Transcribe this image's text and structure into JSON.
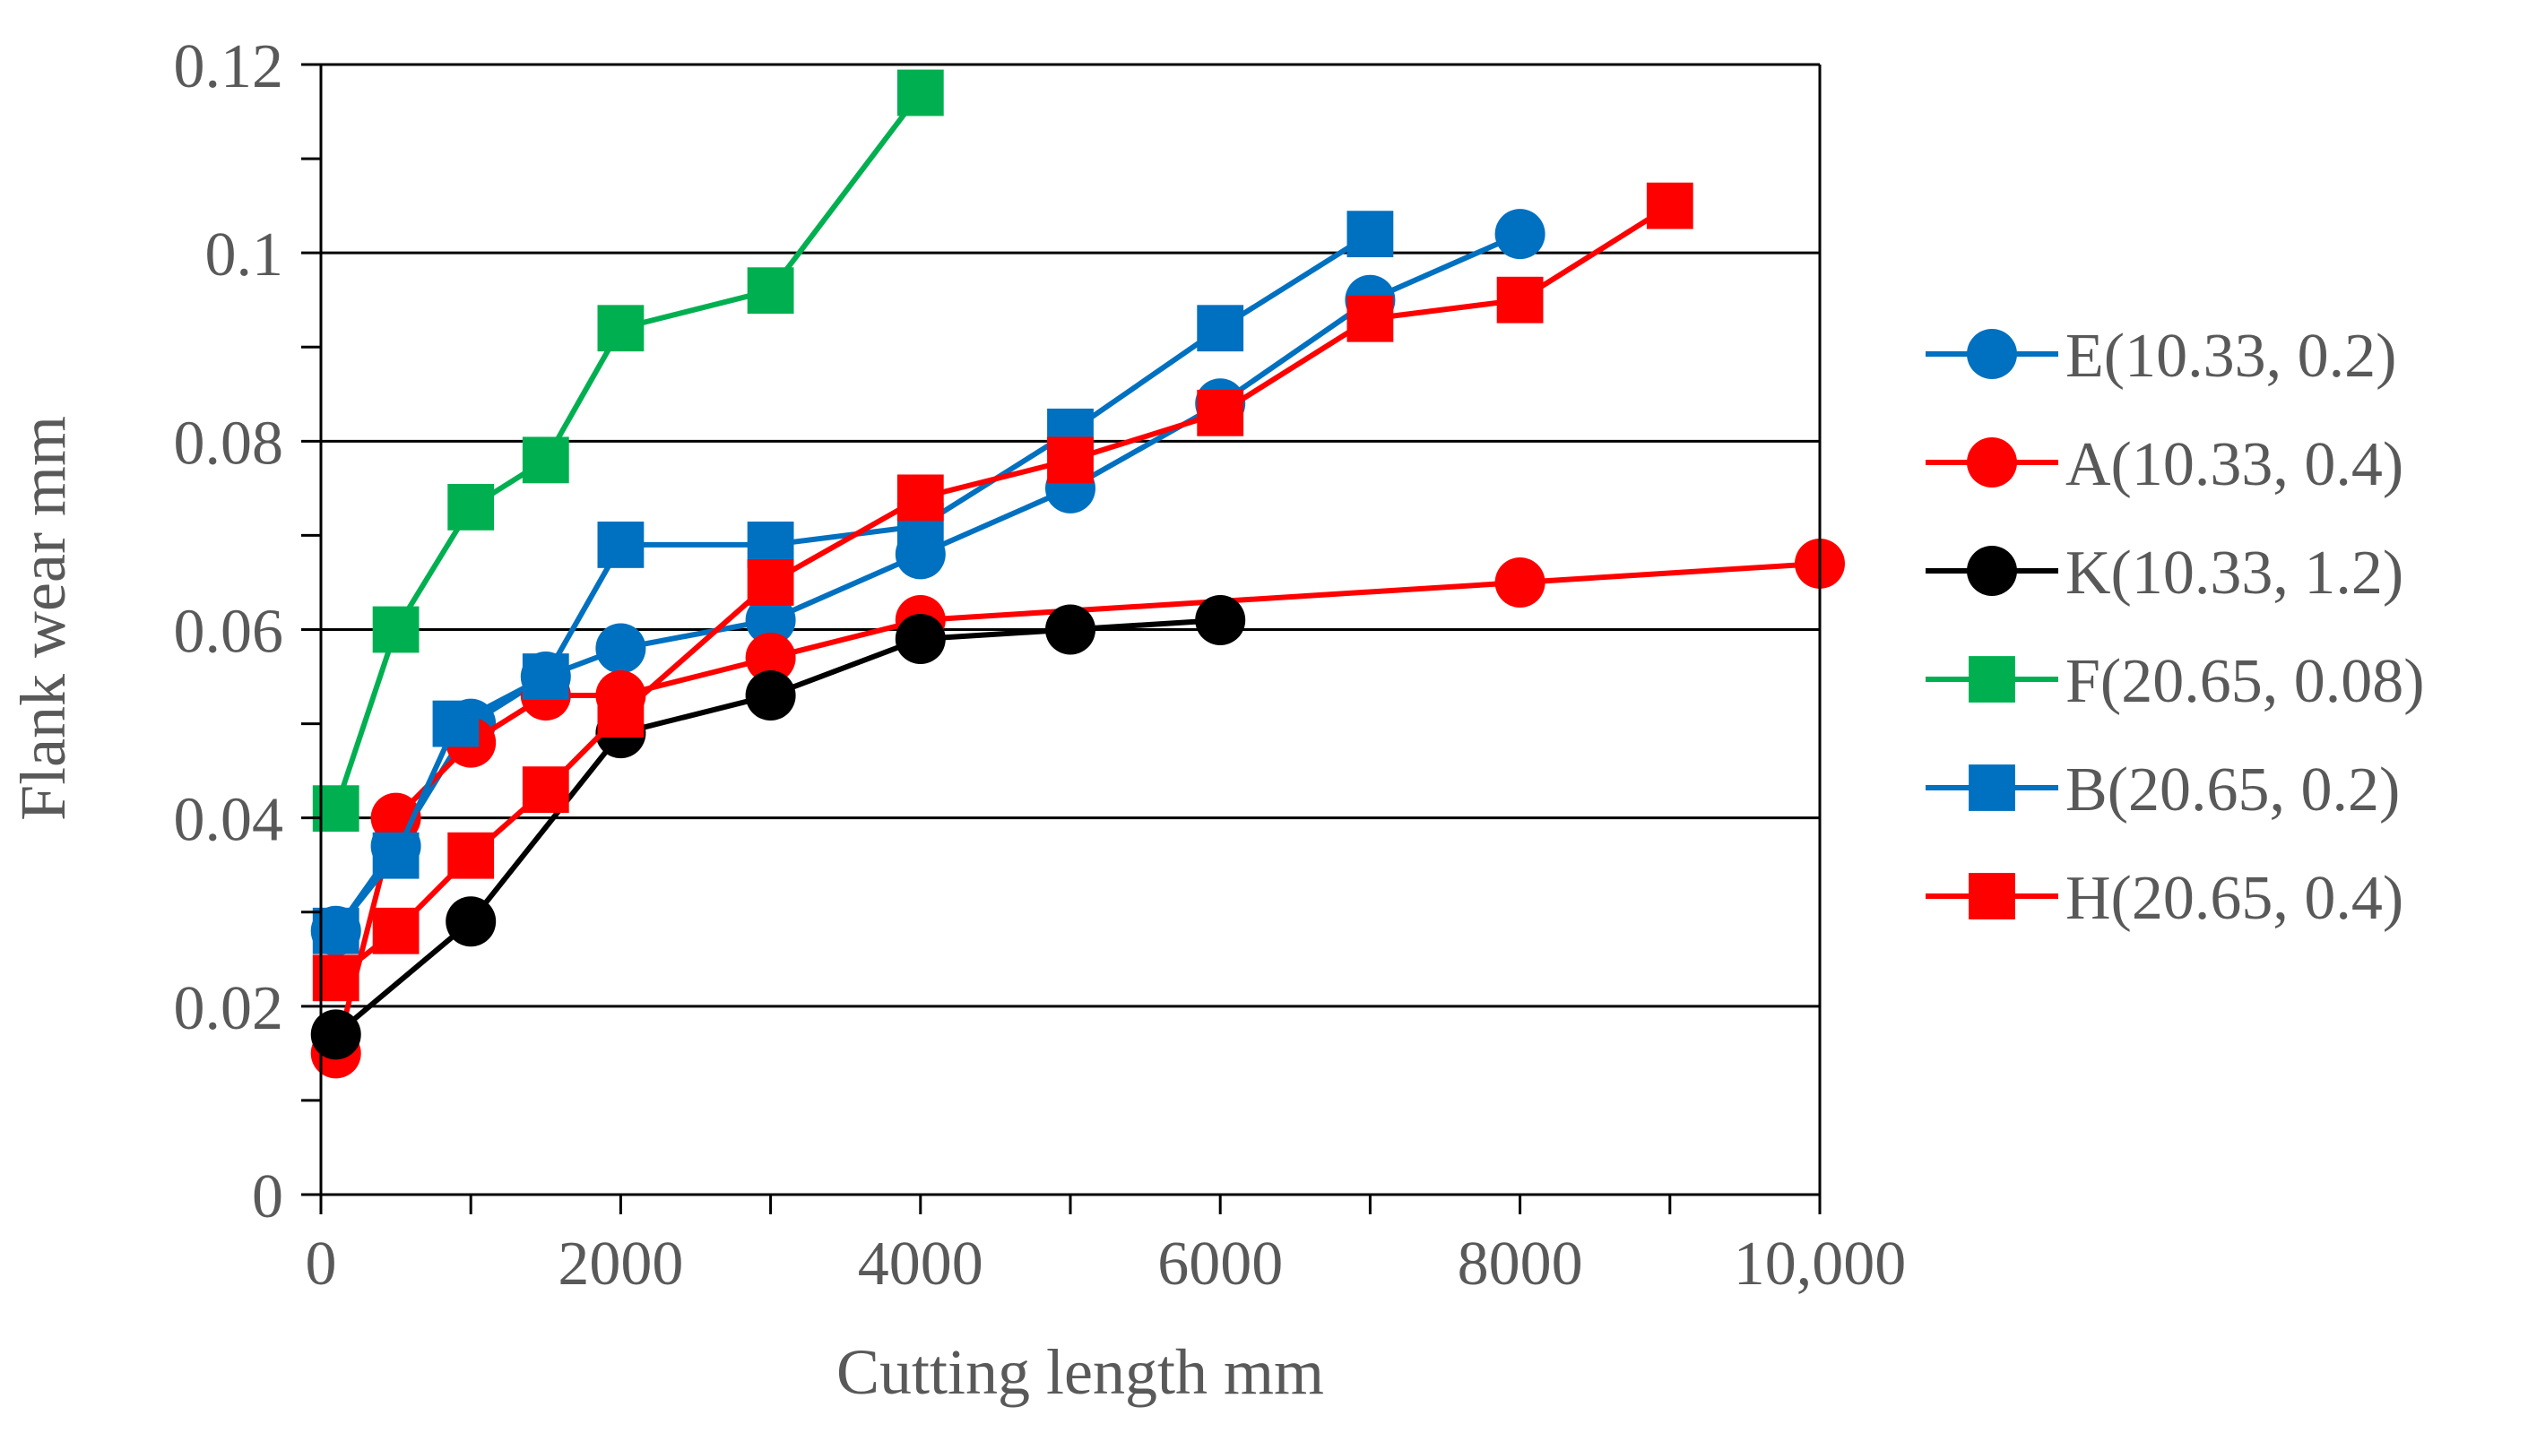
{
  "chart_data": {
    "type": "line",
    "title": "",
    "xlabel": "Cutting length mm",
    "ylabel": "Flank wear mm",
    "xlim": [
      0,
      10000
    ],
    "ylim": [
      0,
      0.12
    ],
    "x_ticks": [
      0,
      2000,
      4000,
      6000,
      8000,
      10000
    ],
    "x_tick_labels": [
      "0",
      "2000",
      "4000",
      "6000",
      "8000",
      "10,000"
    ],
    "x_minor_step": 1000,
    "y_ticks": [
      0,
      0.02,
      0.04,
      0.06,
      0.08,
      0.1,
      0.12
    ],
    "y_tick_labels": [
      "0",
      "0.02",
      "0.04",
      "0.06",
      "0.08",
      "0.1",
      "0.12"
    ],
    "y_minor_step": 0.01,
    "grid": "horizontal-major",
    "legend_position": "right",
    "series": [
      {
        "name": "E(10.33, 0.2)",
        "color": "#0070C0",
        "marker": "circle",
        "x": [
          100,
          500,
          1000,
          1500,
          2000,
          3000,
          4000,
          5000,
          6000,
          7000,
          8000
        ],
        "y": [
          0.028,
          0.037,
          0.05,
          0.055,
          0.058,
          0.061,
          0.068,
          0.075,
          0.084,
          0.095,
          0.102
        ]
      },
      {
        "name": "A(10.33, 0.4)",
        "color": "#FF0000",
        "marker": "circle",
        "x": [
          100,
          500,
          1000,
          1500,
          2000,
          3000,
          4000,
          8000,
          10000
        ],
        "y": [
          0.015,
          0.04,
          0.048,
          0.053,
          0.053,
          0.057,
          0.061,
          0.065,
          0.067
        ]
      },
      {
        "name": "K(10.33, 1.2)",
        "color": "#000000",
        "marker": "circle",
        "x": [
          100,
          1000,
          2000,
          3000,
          4000,
          5000,
          6000
        ],
        "y": [
          0.017,
          0.029,
          0.049,
          0.053,
          0.059,
          0.06,
          0.061
        ]
      },
      {
        "name": "F(20.65, 0.08)",
        "color": "#00B050",
        "marker": "square",
        "x": [
          100,
          500,
          1000,
          1500,
          2000,
          3000,
          4000
        ],
        "y": [
          0.041,
          0.06,
          0.073,
          0.078,
          0.092,
          0.096,
          0.117
        ]
      },
      {
        "name": "B(20.65, 0.2)",
        "color": "#0070C0",
        "marker": "square",
        "x": [
          100,
          500,
          900,
          1500,
          2000,
          3000,
          4000,
          5000,
          6000,
          7000
        ],
        "y": [
          0.028,
          0.036,
          0.05,
          0.055,
          0.069,
          0.069,
          0.071,
          0.081,
          0.092,
          0.102
        ]
      },
      {
        "name": "H(20.65, 0.4)",
        "color": "#FF0000",
        "marker": "square",
        "x": [
          100,
          500,
          1000,
          1500,
          2000,
          3000,
          4000,
          5000,
          6000,
          7000,
          8000,
          9000
        ],
        "y": [
          0.023,
          0.028,
          0.036,
          0.043,
          0.051,
          0.065,
          0.074,
          0.078,
          0.083,
          0.093,
          0.095,
          0.105
        ]
      }
    ]
  }
}
